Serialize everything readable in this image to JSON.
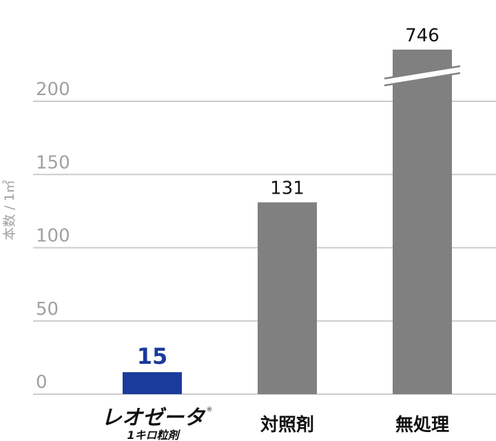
{
  "chart_data": {
    "type": "bar",
    "ylabel": "本数 / 1㎡",
    "ylim": [
      0,
      200
    ],
    "yticks": [
      0,
      50,
      100,
      150,
      200
    ],
    "grid": true,
    "categories": [
      "レオゼータ 1キロ粒剤",
      "対照剤",
      "無処理"
    ],
    "values": [
      15,
      131,
      746
    ],
    "value_labels": [
      "15",
      "131",
      "746"
    ],
    "axis_break": {
      "category": "無処理"
    },
    "colors": {
      "highlight": "#1a3a9c",
      "default": "#808080",
      "grid": "#cccccc",
      "tick_text": "#a0a0a0"
    }
  },
  "logo": {
    "main": "レオゼータ",
    "sub": "1キロ粒剤",
    "reg": "®"
  }
}
